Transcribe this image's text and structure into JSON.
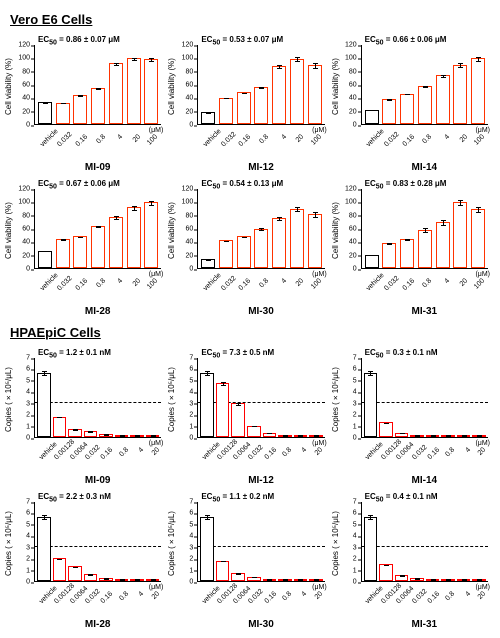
{
  "section1": {
    "title": "Vero E6 Cells",
    "ylabel": "Cell viability (%)",
    "ylim": [
      0,
      120
    ],
    "yticks": [
      0,
      20,
      40,
      60,
      80,
      100,
      120
    ],
    "xunit": "(μM)",
    "categories": [
      "vehicle",
      "0.032",
      "0.16",
      "0.8",
      "4",
      "20",
      "100"
    ],
    "vehicle_color": "#ffffff",
    "vehicle_border": "#000000",
    "bar_color": "#ffffff",
    "bar_border": "#ff3300",
    "err_color": "#000000",
    "charts": [
      {
        "name": "MI-09",
        "ec50": "EC50 = 0.86 ± 0.07 μM",
        "values": [
          33,
          32,
          44,
          55,
          92,
          100,
          99
        ],
        "err": [
          3,
          3,
          3,
          4,
          4,
          3,
          4
        ]
      },
      {
        "name": "MI-12",
        "ec50": "EC50 = 0.53 ± 0.07 μM",
        "values": [
          18,
          40,
          48,
          56,
          88,
          99,
          90
        ],
        "err": [
          3,
          3,
          3,
          4,
          5,
          5,
          6
        ]
      },
      {
        "name": "MI-14",
        "ec50": "EC50 = 0.66 ± 0.06 μM",
        "values": [
          22,
          38,
          46,
          58,
          74,
          90,
          100
        ],
        "err": [
          3,
          3,
          3,
          4,
          4,
          5,
          5
        ]
      },
      {
        "name": "MI-28",
        "ec50": "EC50 = 0.67 ± 0.06 μM",
        "values": [
          26,
          44,
          48,
          64,
          78,
          92,
          100
        ],
        "err": [
          4,
          4,
          3,
          4,
          5,
          5,
          5
        ]
      },
      {
        "name": "MI-30",
        "ec50": "EC50 = 0.54 ± 0.13 μM",
        "values": [
          14,
          42,
          48,
          60,
          76,
          90,
          82
        ],
        "err": [
          3,
          3,
          3,
          4,
          5,
          5,
          6
        ]
      },
      {
        "name": "MI-31",
        "ec50": "EC50 = 0.83 ± 0.28 μM",
        "values": [
          20,
          38,
          44,
          58,
          70,
          100,
          90
        ],
        "err": [
          4,
          3,
          4,
          8,
          8,
          6,
          6
        ]
      }
    ]
  },
  "section2": {
    "title": "HPAEpiC Cells",
    "ylabel": "Copies (×10⁵/μL)",
    "ylim": [
      0,
      7
    ],
    "yticks": [
      0,
      1,
      2,
      3,
      4,
      5,
      6,
      7
    ],
    "dashline_at": 3,
    "xunit": "(μM)",
    "categories": [
      "vehicle",
      "0.00128",
      "0.0064",
      "0.032",
      "0.16",
      "0.8",
      "4",
      "20"
    ],
    "vehicle_color": "#ffffff",
    "vehicle_border": "#000000",
    "bar_color": "#ffffff",
    "bar_border": "#ff0000",
    "err_color": "#000000",
    "charts": [
      {
        "name": "MI-09",
        "ec50": "EC50 = 1.2 ± 0.1 nM",
        "values": [
          5.7,
          1.8,
          0.7,
          0.5,
          0.3,
          0.2,
          0.1,
          0.05
        ],
        "err": [
          0.3,
          0.2,
          0.1,
          0.1,
          0.1,
          0.05,
          0.05,
          0.05
        ]
      },
      {
        "name": "MI-12",
        "ec50": "EC50 = 7.3 ± 0.5 nM",
        "values": [
          5.7,
          4.8,
          3.0,
          1.0,
          0.4,
          0.2,
          0.1,
          0.05
        ],
        "err": [
          0.3,
          0.3,
          0.3,
          0.2,
          0.1,
          0.05,
          0.05,
          0.05
        ]
      },
      {
        "name": "MI-14",
        "ec50": "EC50 = 0.3 ± 0.1 nM",
        "values": [
          5.7,
          1.3,
          0.4,
          0.2,
          0.1,
          0.05,
          0.05,
          0.05
        ],
        "err": [
          0.3,
          0.2,
          0.1,
          0.05,
          0.05,
          0.05,
          0.05,
          0.05
        ]
      },
      {
        "name": "MI-28",
        "ec50": "EC50 = 2.2 ± 0.3 nM",
        "values": [
          5.7,
          2.0,
          1.3,
          0.6,
          0.3,
          0.15,
          0.1,
          0.05
        ],
        "err": [
          0.3,
          0.3,
          0.2,
          0.1,
          0.1,
          0.05,
          0.05,
          0.05
        ]
      },
      {
        "name": "MI-30",
        "ec50": "EC50 = 1.1 ± 0.2 nM",
        "values": [
          5.7,
          1.8,
          0.7,
          0.4,
          0.2,
          0.1,
          0.05,
          0.05
        ],
        "err": [
          0.3,
          0.2,
          0.1,
          0.1,
          0.05,
          0.05,
          0.05,
          0.05
        ]
      },
      {
        "name": "MI-31",
        "ec50": "EC50 = 0.4 ± 0.1 nM",
        "values": [
          5.7,
          1.5,
          0.5,
          0.3,
          0.15,
          0.1,
          0.05,
          0.05
        ],
        "err": [
          0.3,
          0.2,
          0.1,
          0.1,
          0.05,
          0.05,
          0.05,
          0.05
        ]
      }
    ]
  }
}
